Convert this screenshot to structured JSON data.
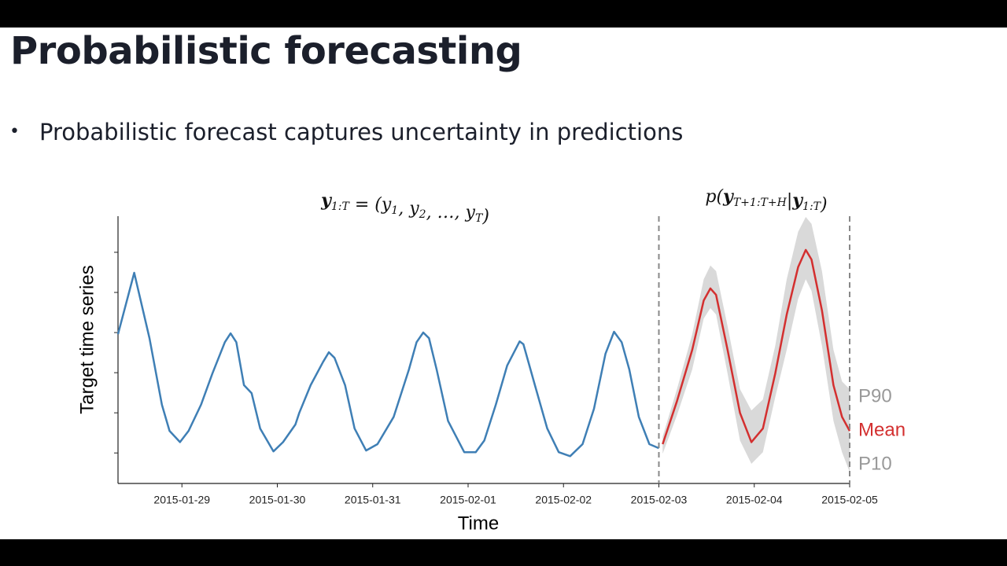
{
  "slide": {
    "title": "Probabilistic forecasting",
    "bullets": [
      "Probabilistic forecast captures uncertainty in predictions"
    ]
  },
  "chart_data": {
    "type": "line",
    "y_label": "Target time series",
    "x_label": "Time",
    "xlim": [
      -0.67,
      7
    ],
    "ylim": [
      -0.76,
      5.9
    ],
    "xticks": [
      {
        "value": 0,
        "label": "2015-01-29"
      },
      {
        "value": 1,
        "label": "2015-01-30"
      },
      {
        "value": 2,
        "label": "2015-01-31"
      },
      {
        "value": 3,
        "label": "2015-02-01"
      },
      {
        "value": 4,
        "label": "2015-02-02"
      },
      {
        "value": 5,
        "label": "2015-02-03"
      },
      {
        "value": 6,
        "label": "2015-02-04"
      },
      {
        "value": 7,
        "label": "2015-02-05"
      }
    ],
    "yticks": [
      0,
      1,
      2,
      3,
      4,
      5
    ],
    "vlines": [
      5,
      7
    ],
    "annotations": [
      [
        {
          "text": "y",
          "sub": "1:T",
          "bold": true
        },
        {
          "text": " = ("
        },
        {
          "text": "y",
          "sub": "1"
        },
        {
          "text": ", "
        },
        {
          "text": "y",
          "sub": "2"
        },
        {
          "text": ", …, "
        },
        {
          "text": "y",
          "sub": "T"
        },
        {
          "text": ")"
        }
      ],
      [
        {
          "text": "p("
        },
        {
          "text": "y",
          "sub": "T+1:T+H",
          "bold": true
        },
        {
          "text": "|"
        },
        {
          "text": "y",
          "sub": "1:T",
          "bold": true
        },
        {
          "text": ")"
        }
      ]
    ],
    "series": [
      {
        "color": "#3f7fb5",
        "x": [
          -0.67,
          -0.5,
          -0.34,
          -0.21,
          -0.13,
          -0.02,
          0.07,
          0.2,
          0.32,
          0.45,
          0.51,
          0.57,
          0.65,
          0.73,
          0.82,
          0.96,
          1.06,
          1.19,
          1.23,
          1.35,
          1.48,
          1.54,
          1.6,
          1.71,
          1.81,
          1.93,
          2.05,
          2.22,
          2.38,
          2.46,
          2.53,
          2.59,
          2.67,
          2.79,
          2.96,
          3.08,
          3.17,
          3.29,
          3.41,
          3.54,
          3.58,
          3.7,
          3.83,
          3.95,
          4.07,
          4.2,
          4.32,
          4.44,
          4.53,
          4.61,
          4.69,
          4.79,
          4.9,
          5.0
        ],
        "values": [
          2.96,
          4.49,
          2.86,
          1.2,
          0.55,
          0.27,
          0.55,
          1.2,
          1.98,
          2.76,
          2.98,
          2.76,
          1.69,
          1.49,
          0.61,
          0.04,
          0.27,
          0.71,
          1.0,
          1.69,
          2.27,
          2.51,
          2.37,
          1.69,
          0.61,
          0.06,
          0.22,
          0.9,
          2.08,
          2.76,
          3.0,
          2.86,
          2.08,
          0.8,
          0.02,
          0.02,
          0.31,
          1.2,
          2.18,
          2.78,
          2.71,
          1.69,
          0.61,
          0.02,
          -0.08,
          0.22,
          1.1,
          2.47,
          3.02,
          2.76,
          2.08,
          0.9,
          0.22,
          0.12
        ]
      },
      {
        "name": "Mean",
        "color": "#d32f2f",
        "x": [
          5.04,
          5.19,
          5.35,
          5.47,
          5.54,
          5.6,
          5.72,
          5.85,
          5.97,
          6.09,
          6.22,
          6.34,
          6.46,
          6.54,
          6.6,
          6.71,
          6.83,
          6.92,
          7.0
        ],
        "values": [
          0.22,
          1.29,
          2.57,
          3.8,
          4.1,
          3.94,
          2.57,
          1.0,
          0.27,
          0.61,
          1.98,
          3.45,
          4.63,
          5.06,
          4.82,
          3.55,
          1.69,
          0.9,
          0.55
        ]
      }
    ],
    "band": {
      "upper_name": "P90",
      "lower_name": "P10",
      "color": "#d9d9d9",
      "x": [
        5.04,
        5.19,
        5.35,
        5.47,
        5.54,
        5.6,
        5.72,
        5.85,
        5.97,
        6.09,
        6.22,
        6.34,
        6.46,
        6.54,
        6.6,
        6.71,
        6.83,
        6.92,
        7.0
      ],
      "upper": [
        0.41,
        1.59,
        2.96,
        4.33,
        4.67,
        4.53,
        3.16,
        1.59,
        1.06,
        1.33,
        2.67,
        4.33,
        5.51,
        5.88,
        5.71,
        4.53,
        2.57,
        1.78,
        1.59
      ],
      "lower": [
        -0.02,
        0.94,
        2.08,
        3.35,
        3.61,
        3.45,
        1.98,
        0.31,
        -0.27,
        0.02,
        1.39,
        2.57,
        3.84,
        4.33,
        4.04,
        2.67,
        0.8,
        0.02,
        -0.47
      ]
    }
  }
}
